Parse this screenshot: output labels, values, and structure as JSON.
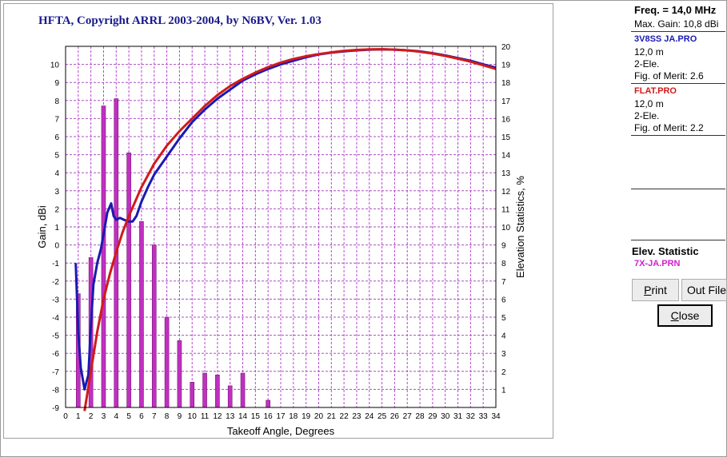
{
  "chart_data": {
    "type": "bar+line",
    "title": "HFTA, Copyright ARRL 2003-2004, by N6BV, Ver. 1.03",
    "xlabel": "Takeoff Angle, Degrees",
    "ylabel": "Gain, dBi",
    "y2label": "Elevation Statistics, %",
    "xlim": [
      0,
      34
    ],
    "ylim": [
      -9,
      11
    ],
    "y2lim": [
      0,
      20
    ],
    "grid": true,
    "x_ticks": [
      0,
      1,
      2,
      3,
      4,
      5,
      6,
      7,
      8,
      9,
      10,
      11,
      12,
      13,
      14,
      15,
      16,
      17,
      18,
      19,
      20,
      21,
      22,
      23,
      24,
      25,
      26,
      27,
      28,
      29,
      30,
      31,
      32,
      33,
      34
    ],
    "y_ticks": [
      -9,
      -8,
      -7,
      -6,
      -5,
      -4,
      -3,
      -2,
      -1,
      0,
      1,
      2,
      3,
      4,
      5,
      6,
      7,
      8,
      9,
      10
    ],
    "y2_ticks": [
      1,
      2,
      3,
      4,
      5,
      6,
      7,
      8,
      9,
      10,
      11,
      12,
      13,
      14,
      15,
      16,
      17,
      18,
      19,
      20
    ],
    "bars": {
      "name": "7X-JA.PRN",
      "color": "#c030c0",
      "x": [
        1,
        2,
        3,
        4,
        5,
        6,
        7,
        8,
        9,
        10,
        11,
        12,
        13,
        14,
        16
      ],
      "values": [
        6.3,
        8.3,
        16.7,
        17.1,
        14.1,
        10.3,
        9.0,
        5.0,
        3.7,
        1.4,
        1.9,
        1.8,
        1.2,
        1.9,
        0.4
      ]
    },
    "series": [
      {
        "name": "3V8SS JA.PRO",
        "color": "#1a1ab0",
        "x": [
          0.8,
          1.0,
          1.2,
          1.5,
          1.8,
          2.0,
          2.2,
          2.5,
          2.8,
          3.0,
          3.3,
          3.6,
          3.8,
          4.0,
          4.3,
          4.6,
          5.0,
          5.3,
          5.6,
          6.0,
          6.5,
          7,
          8,
          9,
          10,
          11,
          12,
          13,
          14,
          15,
          16,
          17,
          18,
          19,
          20,
          21,
          22,
          23,
          24,
          25,
          26,
          27,
          28,
          29,
          30,
          31,
          32,
          33,
          34
        ],
        "values": [
          -1.0,
          -4.8,
          -6.8,
          -8.0,
          -7.2,
          -4.5,
          -2.2,
          -1.0,
          -0.2,
          0.6,
          1.8,
          2.3,
          1.6,
          1.4,
          1.5,
          1.4,
          1.3,
          1.3,
          1.6,
          2.4,
          3.2,
          3.9,
          4.9,
          5.9,
          6.8,
          7.5,
          8.1,
          8.6,
          9.1,
          9.45,
          9.75,
          10.0,
          10.2,
          10.4,
          10.55,
          10.65,
          10.72,
          10.78,
          10.82,
          10.83,
          10.82,
          10.78,
          10.72,
          10.62,
          10.5,
          10.35,
          10.2,
          10.0,
          9.82
        ]
      },
      {
        "name": "FLAT.PRO",
        "color": "#d11a1a",
        "x": [
          1.5,
          2,
          2.5,
          3,
          3.5,
          4,
          4.5,
          5,
          5.5,
          6,
          7,
          8,
          9,
          10,
          11,
          12,
          13,
          14,
          15,
          16,
          17,
          18,
          19,
          20,
          21,
          22,
          23,
          24,
          25,
          26,
          27,
          28,
          29,
          30,
          31,
          32,
          33,
          34
        ],
        "values": [
          -9.2,
          -7.0,
          -4.8,
          -3.0,
          -1.6,
          -0.4,
          0.7,
          1.6,
          2.4,
          3.2,
          4.5,
          5.5,
          6.3,
          7.0,
          7.7,
          8.3,
          8.8,
          9.2,
          9.55,
          9.85,
          10.1,
          10.3,
          10.45,
          10.57,
          10.67,
          10.75,
          10.8,
          10.83,
          10.84,
          10.82,
          10.78,
          10.7,
          10.6,
          10.47,
          10.32,
          10.15,
          9.95,
          9.75
        ]
      }
    ]
  },
  "panel": {
    "freq": "Freq. = 14,0 MHz",
    "max_gain": "Max. Gain: 10,8 dBi",
    "file1": {
      "name": "3V8SS JA.PRO",
      "height": "12,0 m",
      "elements": "2-Ele.",
      "merit": "Fig. of Merit:  2.6"
    },
    "file2": {
      "name": "FLAT.PRO",
      "height": "12,0 m",
      "elements": "2-Ele.",
      "merit": "Fig. of Merit:  2.2"
    },
    "elev_title": "Elev. Statistic",
    "elev_file": "7X-JA.PRN"
  },
  "buttons": {
    "print_underlined": "P",
    "print_rest": "rint",
    "outfile": "Out File",
    "close_underlined": "C",
    "close_rest": "lose"
  }
}
